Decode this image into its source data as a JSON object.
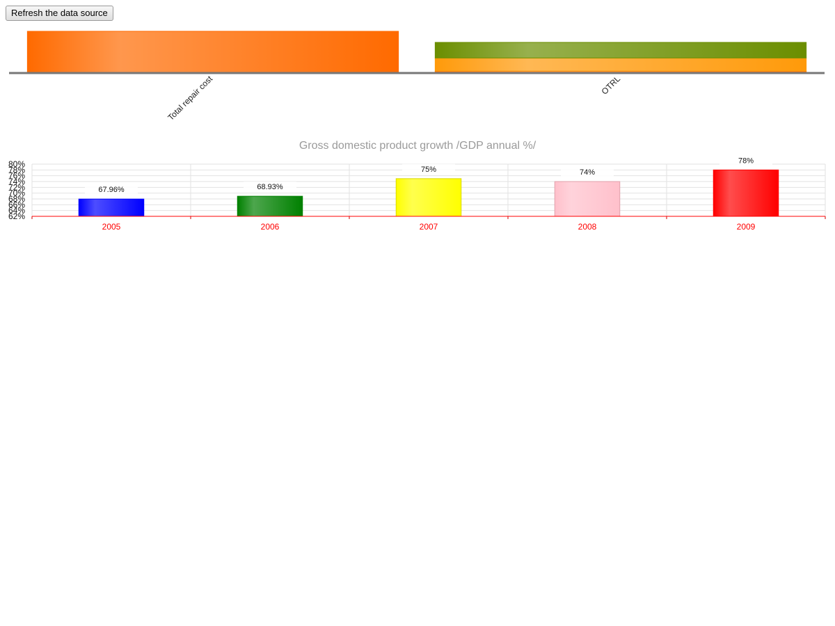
{
  "toolbar": {
    "refresh_label": "Refresh the data source"
  },
  "chart_data": [
    {
      "type": "bar",
      "stacked": true,
      "categories": [
        "Total repair cost",
        "OTRL"
      ],
      "series": [
        {
          "values": [
            1.0,
            0.03
          ],
          "color": "#ff6a00"
        },
        {
          "values": [
            0,
            0.32
          ],
          "color": "#ff9a0a"
        },
        {
          "values": [
            0,
            0.38
          ],
          "color": "#6b8e00"
        }
      ],
      "ylim": [
        0,
        1.0
      ],
      "grid": false,
      "legend": "none"
    },
    {
      "type": "bar",
      "title": "Gross domestic product growth /GDP annual %/",
      "categories": [
        "2005",
        "2006",
        "2007",
        "2008",
        "2009"
      ],
      "values": [
        67.96,
        68.93,
        75,
        74,
        78
      ],
      "data_labels": [
        "67.96%",
        "68.93%",
        "75%",
        "74%",
        "78%"
      ],
      "colors": [
        "#0000ff",
        "#008000",
        "#ffff00",
        "#ffc0cb",
        "#ff0000"
      ],
      "ylim": [
        62,
        80
      ],
      "yticks": [
        "62%",
        "64%",
        "66%",
        "68%",
        "70%",
        "72%",
        "74%",
        "76%",
        "78%",
        "80%"
      ],
      "grid": true,
      "legend": "none"
    }
  ]
}
